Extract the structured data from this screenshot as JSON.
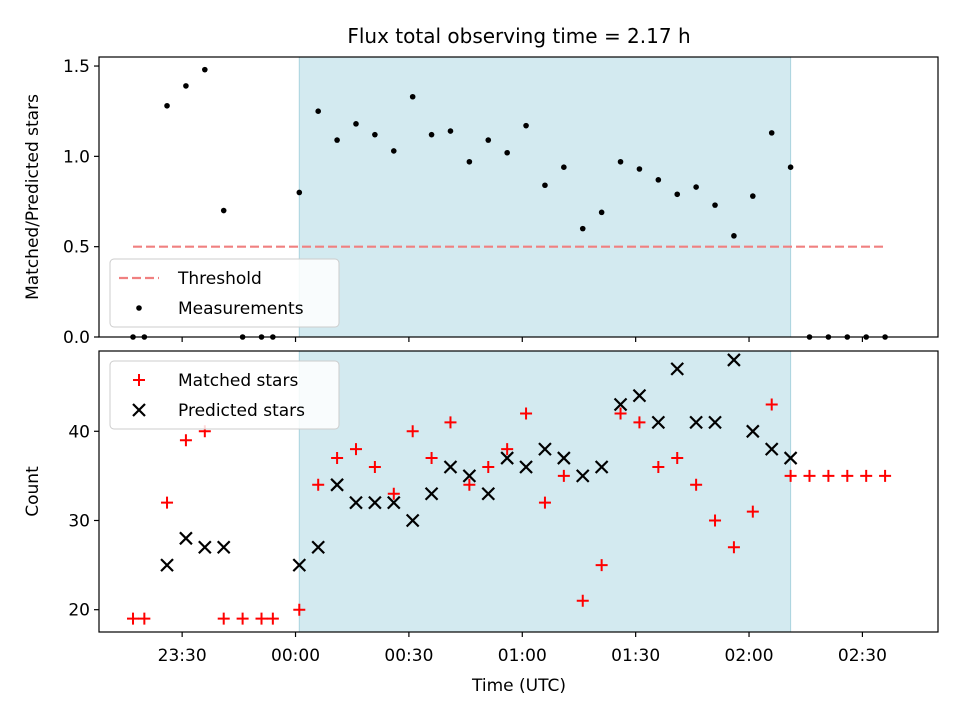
{
  "chart_data": [
    {
      "type": "scatter",
      "title": "Flux total observing time = 2.17 h",
      "xlabel": "",
      "ylabel": "Matched/Predicted stars",
      "ylim": [
        0,
        1.55
      ],
      "yticks": [
        "0.0",
        "0.5",
        "1.0",
        "1.5"
      ],
      "ytick_values": [
        0,
        0.5,
        1.0,
        1.5
      ],
      "xlim": [
        "23:08",
        "02:50"
      ],
      "highlight_span": [
        "00:01",
        "02:11"
      ],
      "highlight_color": "#d3eaf0",
      "legend_position": "lower-left",
      "threshold": {
        "name": "Threshold",
        "value": 0.5,
        "x_range": [
          "23:17",
          "02:36"
        ],
        "color": "#f08080"
      },
      "series": [
        {
          "name": "Measurements",
          "color": "#000000",
          "points": [
            [
              "23:17",
              0
            ],
            [
              "23:20",
              0
            ],
            [
              "23:26",
              1.28
            ],
            [
              "23:31",
              1.39
            ],
            [
              "23:36",
              1.48
            ],
            [
              "23:41",
              0.7
            ],
            [
              "23:46",
              0
            ],
            [
              "23:51",
              0
            ],
            [
              "23:54",
              0
            ],
            [
              "00:01",
              0.8
            ],
            [
              "00:06",
              1.25
            ],
            [
              "00:11",
              1.09
            ],
            [
              "00:16",
              1.18
            ],
            [
              "00:21",
              1.12
            ],
            [
              "00:26",
              1.03
            ],
            [
              "00:31",
              1.33
            ],
            [
              "00:36",
              1.12
            ],
            [
              "00:41",
              1.14
            ],
            [
              "00:46",
              0.97
            ],
            [
              "00:51",
              1.09
            ],
            [
              "00:56",
              1.02
            ],
            [
              "01:01",
              1.17
            ],
            [
              "01:06",
              0.84
            ],
            [
              "01:11",
              0.94
            ],
            [
              "01:16",
              0.6
            ],
            [
              "01:21",
              0.69
            ],
            [
              "01:26",
              0.97
            ],
            [
              "01:31",
              0.93
            ],
            [
              "01:36",
              0.87
            ],
            [
              "01:41",
              0.79
            ],
            [
              "01:46",
              0.83
            ],
            [
              "01:51",
              0.73
            ],
            [
              "01:56",
              0.56
            ],
            [
              "02:01",
              0.78
            ],
            [
              "02:06",
              1.13
            ],
            [
              "02:11",
              0.94
            ],
            [
              "02:16",
              0
            ],
            [
              "02:21",
              0
            ],
            [
              "02:26",
              0
            ],
            [
              "02:31",
              0
            ],
            [
              "02:36",
              0
            ]
          ]
        }
      ]
    },
    {
      "type": "scatter",
      "title": "",
      "xlabel": "Time (UTC)",
      "ylabel": "Count",
      "ylim": [
        17.5,
        49
      ],
      "yticks": [
        "20",
        "30",
        "40"
      ],
      "ytick_values": [
        20,
        30,
        40
      ],
      "xlim": [
        "23:08",
        "02:50"
      ],
      "xticks": [
        "23:30",
        "00:00",
        "00:30",
        "01:00",
        "01:30",
        "02:00",
        "02:30"
      ],
      "highlight_span": [
        "00:01",
        "02:11"
      ],
      "highlight_color": "#d3eaf0",
      "legend_position": "upper-left",
      "series": [
        {
          "name": "Matched stars",
          "marker": "plus",
          "color": "#ff0000",
          "points": [
            [
              "23:17",
              19
            ],
            [
              "23:20",
              19
            ],
            [
              "23:26",
              32
            ],
            [
              "23:31",
              39
            ],
            [
              "23:36",
              40
            ],
            [
              "23:41",
              19
            ],
            [
              "23:46",
              19
            ],
            [
              "23:51",
              19
            ],
            [
              "23:54",
              19
            ],
            [
              "00:01",
              20
            ],
            [
              "00:06",
              34
            ],
            [
              "00:11",
              37
            ],
            [
              "00:16",
              38
            ],
            [
              "00:21",
              36
            ],
            [
              "00:26",
              33
            ],
            [
              "00:31",
              40
            ],
            [
              "00:36",
              37
            ],
            [
              "00:41",
              41
            ],
            [
              "00:46",
              34
            ],
            [
              "00:51",
              36
            ],
            [
              "00:56",
              38
            ],
            [
              "01:01",
              42
            ],
            [
              "01:06",
              32
            ],
            [
              "01:11",
              35
            ],
            [
              "01:16",
              21
            ],
            [
              "01:21",
              25
            ],
            [
              "01:26",
              42
            ],
            [
              "01:31",
              41
            ],
            [
              "01:36",
              36
            ],
            [
              "01:41",
              37
            ],
            [
              "01:46",
              34
            ],
            [
              "01:51",
              30
            ],
            [
              "01:56",
              27
            ],
            [
              "02:01",
              31
            ],
            [
              "02:06",
              43
            ],
            [
              "02:11",
              35
            ],
            [
              "02:16",
              35
            ],
            [
              "02:21",
              35
            ],
            [
              "02:26",
              35
            ],
            [
              "02:31",
              35
            ],
            [
              "02:36",
              35
            ]
          ]
        },
        {
          "name": "Predicted stars",
          "marker": "x",
          "color": "#000000",
          "points": [
            [
              "23:26",
              25
            ],
            [
              "23:31",
              28
            ],
            [
              "23:36",
              27
            ],
            [
              "23:41",
              27
            ],
            [
              "00:01",
              25
            ],
            [
              "00:06",
              27
            ],
            [
              "00:11",
              34
            ],
            [
              "00:16",
              32
            ],
            [
              "00:21",
              32
            ],
            [
              "00:26",
              32
            ],
            [
              "00:31",
              30
            ],
            [
              "00:36",
              33
            ],
            [
              "00:41",
              36
            ],
            [
              "00:46",
              35
            ],
            [
              "00:51",
              33
            ],
            [
              "00:56",
              37
            ],
            [
              "01:01",
              36
            ],
            [
              "01:06",
              38
            ],
            [
              "01:11",
              37
            ],
            [
              "01:16",
              35
            ],
            [
              "01:21",
              36
            ],
            [
              "01:26",
              43
            ],
            [
              "01:31",
              44
            ],
            [
              "01:36",
              41
            ],
            [
              "01:41",
              47
            ],
            [
              "01:46",
              41
            ],
            [
              "01:51",
              41
            ],
            [
              "01:56",
              48
            ],
            [
              "02:01",
              40
            ],
            [
              "02:06",
              38
            ],
            [
              "02:11",
              37
            ]
          ]
        }
      ]
    }
  ]
}
